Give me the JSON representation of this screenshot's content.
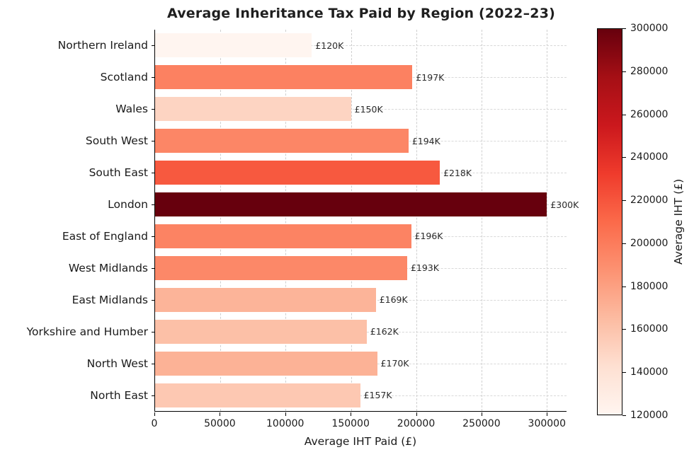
{
  "chart_data": {
    "type": "bar",
    "orientation": "horizontal",
    "title": "Average Inheritance Tax Paid by Region (2022–23)",
    "xlabel": "Average IHT Paid (£)",
    "ylabel": "",
    "categories": [
      "Northern Ireland",
      "Scotland",
      "Wales",
      "South West",
      "South East",
      "London",
      "East of England",
      "West Midlands",
      "East Midlands",
      "Yorkshire and Humber",
      "North West",
      "North East"
    ],
    "values": [
      120000,
      197000,
      150000,
      194000,
      218000,
      300000,
      196000,
      193000,
      169000,
      162000,
      170000,
      157000
    ],
    "bar_labels": [
      "£120K",
      "£197K",
      "£150K",
      "£194K",
      "£218K",
      "£300K",
      "£196K",
      "£193K",
      "£169K",
      "£162K",
      "£170K",
      "£157K"
    ],
    "bar_colors": [
      "#fff5f0",
      "#fc8161",
      "#fdd4c2",
      "#fc8666",
      "#f7593f",
      "#67000d",
      "#fc8363",
      "#fc8868",
      "#fcb499",
      "#fcc0a7",
      "#fcb296",
      "#fdc8b2"
    ],
    "xlim": [
      0,
      315000
    ],
    "x_ticks": [
      0,
      50000,
      100000,
      150000,
      200000,
      250000,
      300000
    ],
    "x_tick_labels": [
      "0",
      "50000",
      "100000",
      "150000",
      "200000",
      "250000",
      "300000"
    ],
    "grid": true,
    "legend": "none",
    "colorbar": {
      "label": "Average IHT (£)",
      "min": 120000,
      "max": 300000,
      "ticks": [
        120000,
        140000,
        160000,
        180000,
        200000,
        220000,
        240000,
        260000,
        280000,
        300000
      ],
      "colormap": "Reds",
      "colormap_stops": [
        "#fff5f0",
        "#fee0d2",
        "#fcbba1",
        "#fc9272",
        "#fb6a4a",
        "#ef3b2c",
        "#cb181d",
        "#a50f15",
        "#67000d"
      ]
    }
  }
}
